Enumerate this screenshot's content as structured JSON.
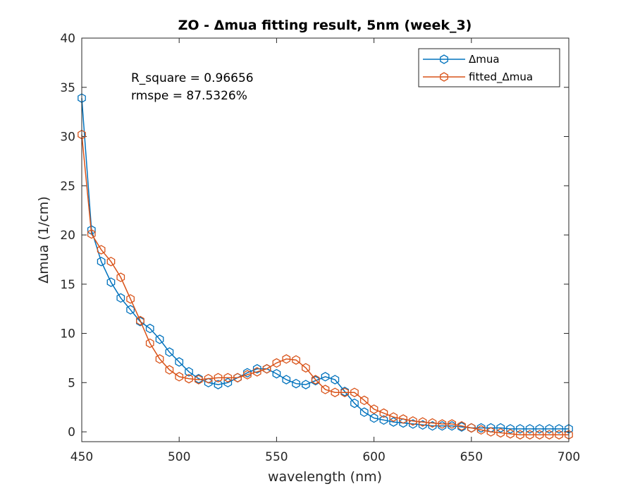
{
  "colors": {
    "series_1": "#0072BD",
    "series_2": "#D95319",
    "axes": "#262626",
    "background": "#ffffff"
  },
  "chart_data": {
    "type": "line",
    "title": "ZO - Δmua fitting result, 5nm (week_3)",
    "xlabel": "wavelength (nm)",
    "ylabel": "Δmua (1/cm)",
    "xlim": [
      450,
      700
    ],
    "ylim": [
      -1,
      40
    ],
    "xticks": [
      450,
      500,
      550,
      600,
      650,
      700
    ],
    "yticks": [
      0,
      5,
      10,
      15,
      20,
      25,
      30,
      35,
      40
    ],
    "grid": false,
    "legend_position": "top-right",
    "marker": "hexagon",
    "annotations": [
      "R_square = 0.96656",
      "rmspe = 87.5326%"
    ],
    "x": [
      450,
      455,
      460,
      465,
      470,
      475,
      480,
      485,
      490,
      495,
      500,
      505,
      510,
      515,
      520,
      525,
      530,
      535,
      540,
      545,
      550,
      555,
      560,
      565,
      570,
      575,
      580,
      585,
      590,
      595,
      600,
      605,
      610,
      615,
      620,
      625,
      630,
      635,
      640,
      645,
      650,
      655,
      660,
      665,
      670,
      675,
      680,
      685,
      690,
      695,
      700
    ],
    "series": [
      {
        "name": "Δmua",
        "values": [
          33.9,
          20.5,
          17.3,
          15.2,
          13.6,
          12.4,
          11.2,
          10.5,
          9.4,
          8.1,
          7.1,
          6.1,
          5.4,
          5.0,
          4.8,
          5.0,
          5.5,
          6.0,
          6.4,
          6.4,
          5.9,
          5.3,
          4.9,
          4.8,
          5.2,
          5.6,
          5.3,
          4.1,
          2.9,
          2.0,
          1.4,
          1.2,
          1.0,
          0.9,
          0.8,
          0.7,
          0.6,
          0.6,
          0.6,
          0.5,
          0.4,
          0.4,
          0.4,
          0.4,
          0.3,
          0.3,
          0.3,
          0.3,
          0.3,
          0.3,
          0.3
        ]
      },
      {
        "name": "fitted_Δmua",
        "values": [
          30.2,
          20.1,
          18.5,
          17.3,
          15.7,
          13.5,
          11.3,
          9.0,
          7.4,
          6.3,
          5.6,
          5.4,
          5.3,
          5.4,
          5.5,
          5.5,
          5.5,
          5.8,
          6.1,
          6.4,
          7.0,
          7.4,
          7.3,
          6.5,
          5.3,
          4.3,
          4.0,
          4.0,
          4.0,
          3.2,
          2.3,
          1.9,
          1.5,
          1.3,
          1.1,
          1.0,
          0.9,
          0.8,
          0.8,
          0.6,
          0.4,
          0.2,
          0.0,
          -0.1,
          -0.2,
          -0.3,
          -0.3,
          -0.3,
          -0.3,
          -0.3,
          -0.3
        ]
      }
    ]
  }
}
